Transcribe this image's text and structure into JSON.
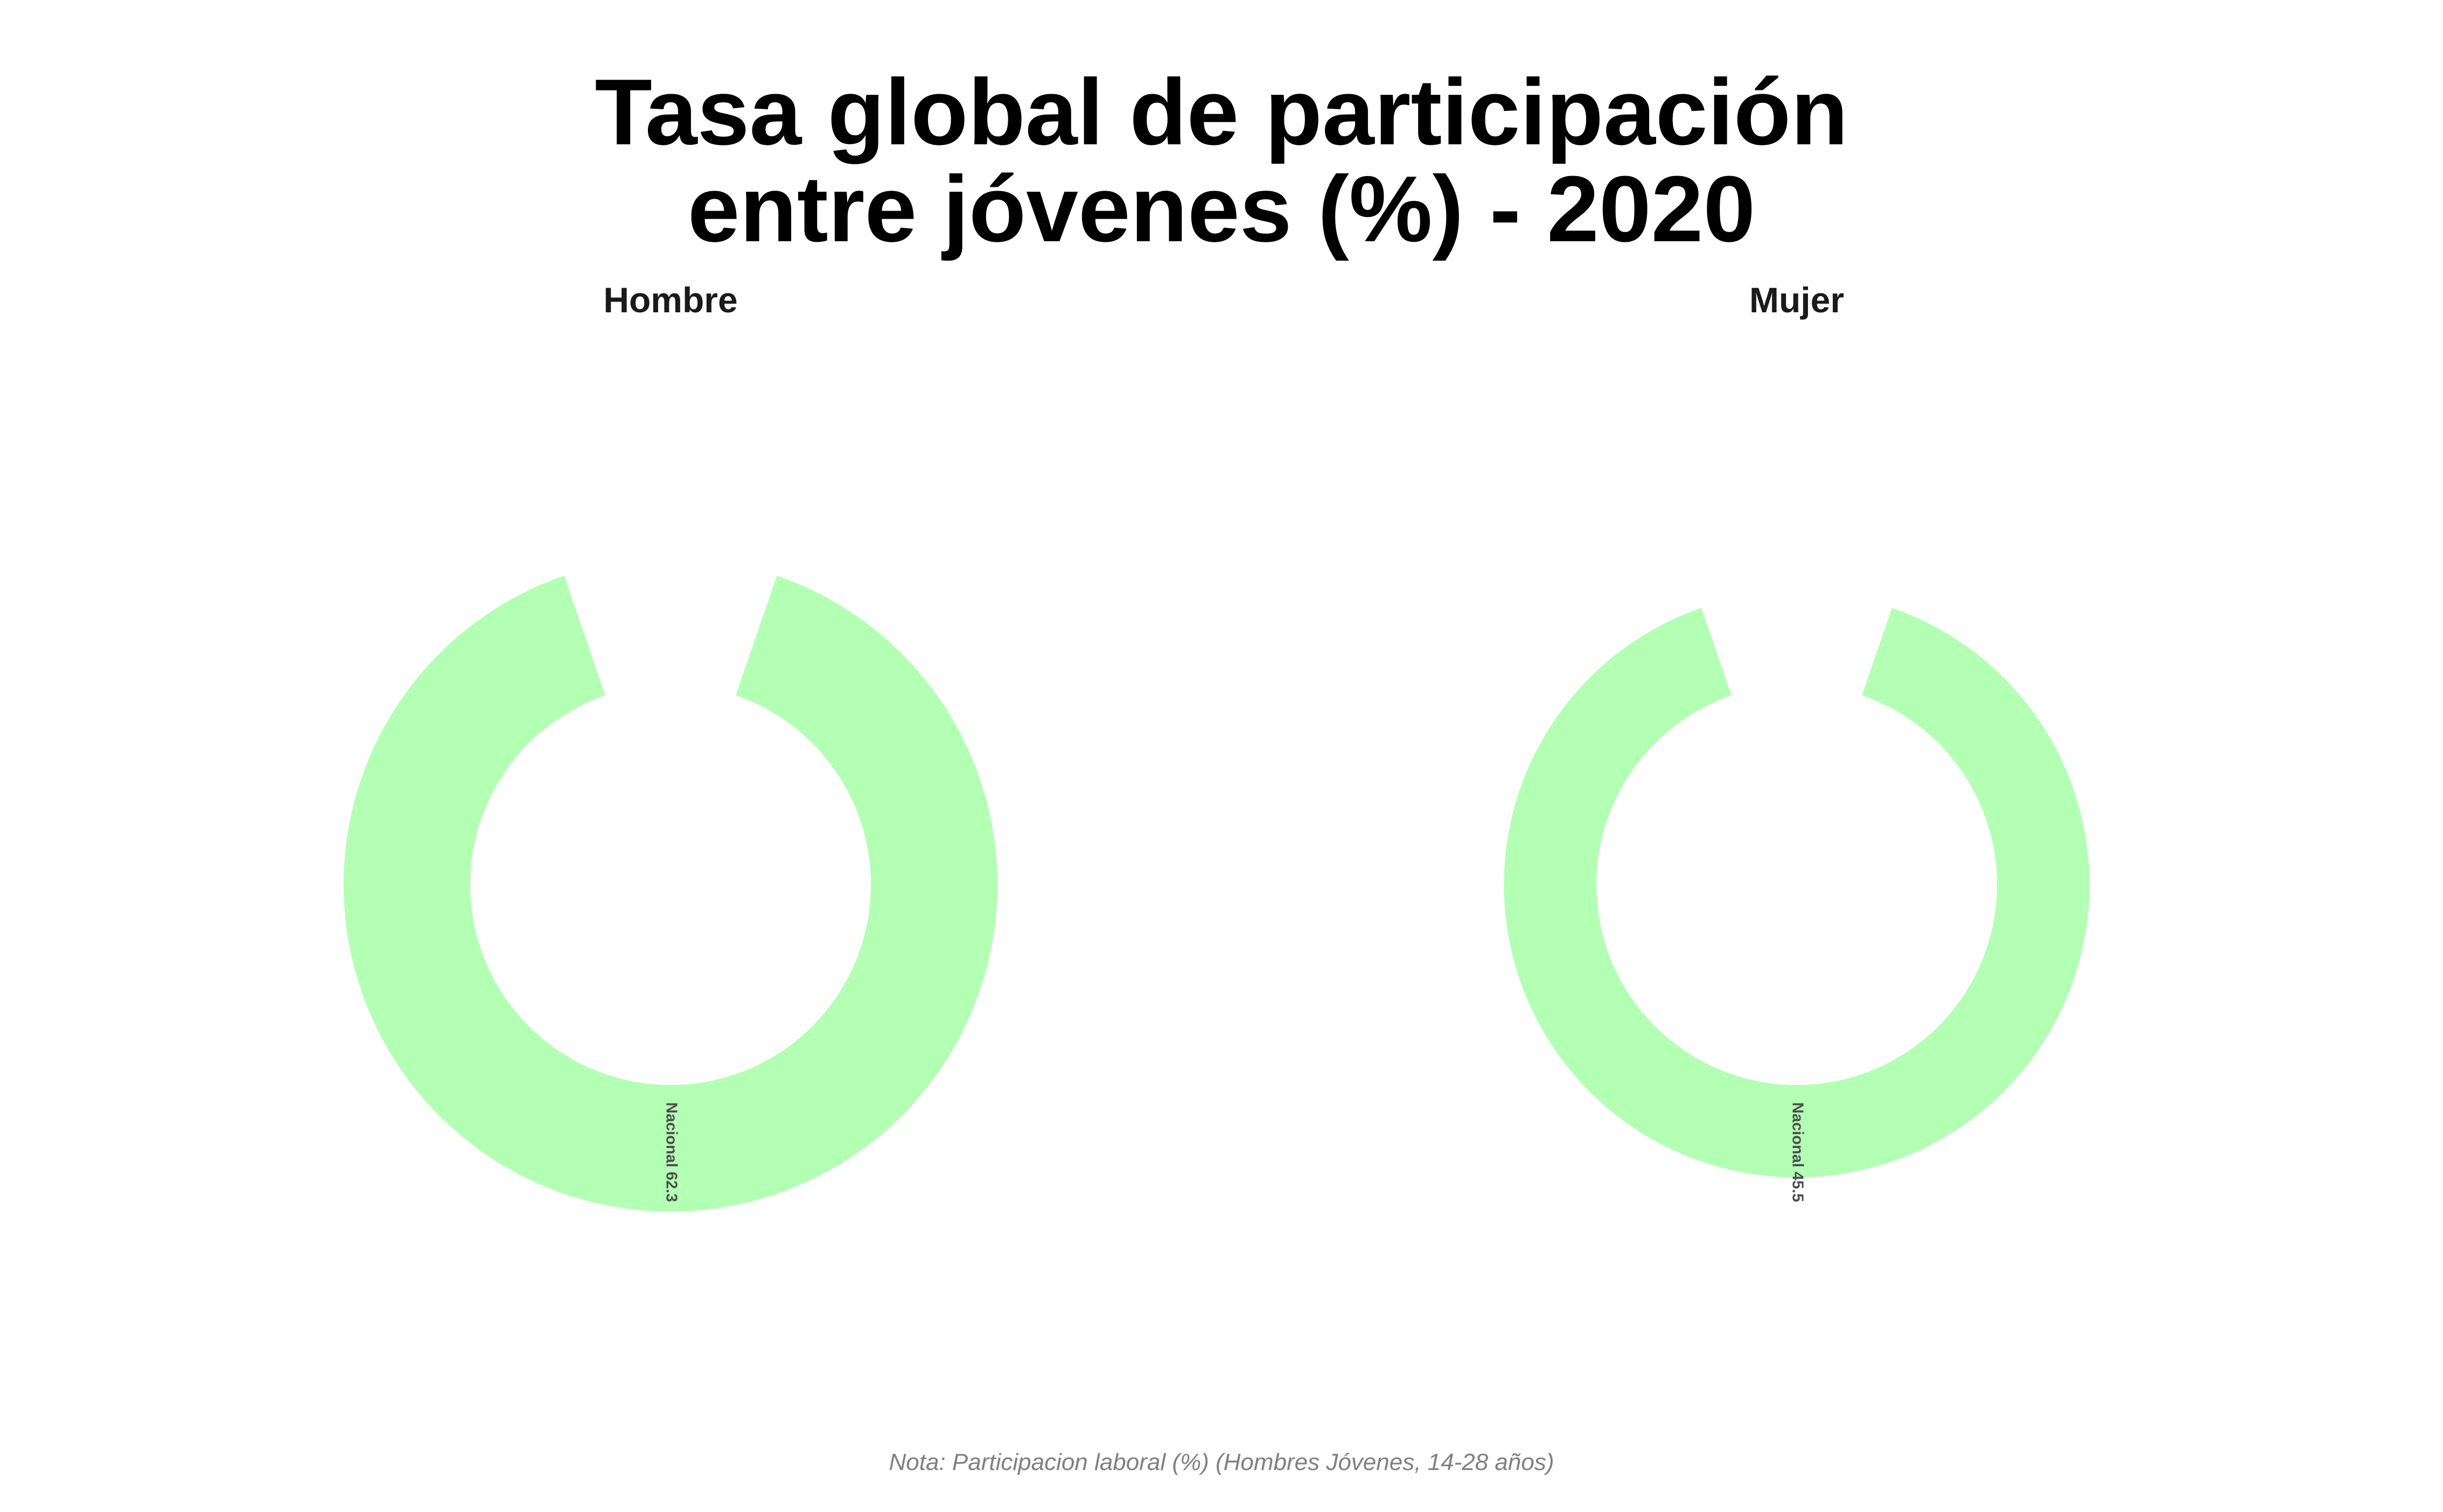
{
  "chart_data": {
    "type": "donut",
    "title": [
      "Tasa global de participación",
      "entre jóvenes (%) - 2020"
    ],
    "caption": "Nota: Participacion laboral (%) (Hombres Jóvenes, 14-28 años)",
    "colors": {
      "ring": "#b3ffb3",
      "label": "#4d4d4d",
      "title": "#000000",
      "facet": "#1a1a1a",
      "caption": "#808080"
    },
    "scale_max": 62.3,
    "facets": [
      {
        "name": "Hombre",
        "label": "Nacional 62.3",
        "category": "Nacional",
        "value": 62.3
      },
      {
        "name": "Mujer",
        "label": "Nacional 45.5",
        "category": "Nacional",
        "value": 45.5
      }
    ]
  }
}
